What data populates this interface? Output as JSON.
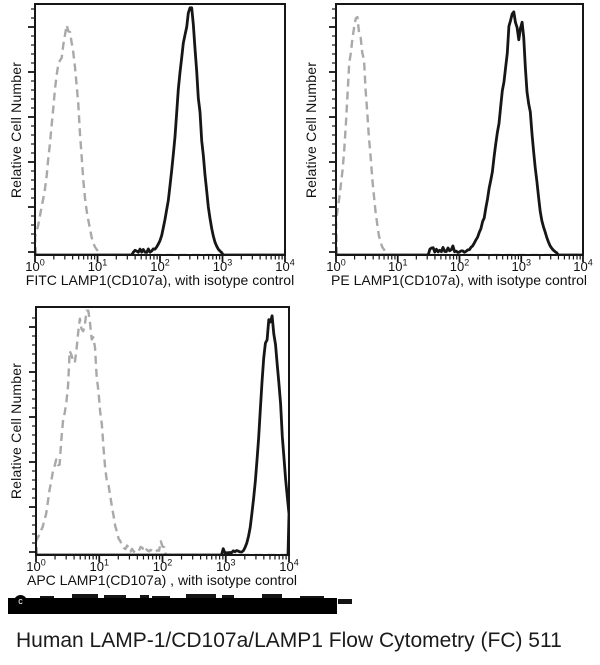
{
  "page": {
    "caption": "Human LAMP-1/CD107a/LAMP1 Flow Cytometry (FC) 511",
    "copyright_symbol": "c",
    "redaction_note": "black bar covering copyright line"
  },
  "chart_data": [
    {
      "type": "histogram",
      "x_scale": "log",
      "x_range": [
        1,
        10000
      ],
      "ylabel": "Relative Cell Number",
      "xlabel": "FITC LAMP1(CD107a), with isotype control",
      "x_tick_exponents": [
        0,
        1,
        2,
        3,
        4
      ],
      "x_tick_values": [
        1,
        10,
        100,
        1000,
        10000
      ],
      "grid": false,
      "legend": "none",
      "series": [
        {
          "name": "isotype control",
          "style": "dashed",
          "color": "#a9a9a9",
          "width": 2.4,
          "peak_x": 3.3,
          "mu": 0.52,
          "sigma_left": 0.23,
          "sigma_right": 0.17,
          "peak_h": 0.93,
          "jag": 0.07,
          "seed": 11
        },
        {
          "name": "FITC LAMP1(CD107a)",
          "style": "solid",
          "color": "#161616",
          "width": 2.8,
          "peak_x": 295,
          "mu": 2.47,
          "sigma_left": 0.2,
          "sigma_right": 0.17,
          "peak_h": 0.95,
          "jag": 0.06,
          "seed": 21,
          "floor": {
            "from": 1.55,
            "to": 2.05,
            "amp": 0.022
          }
        }
      ]
    },
    {
      "type": "histogram",
      "x_scale": "log",
      "x_range": [
        1,
        10000
      ],
      "ylabel": "Relative Cell Number",
      "xlabel": "PE LAMP1(CD107a), with isotype control",
      "x_tick_exponents": [
        0,
        1,
        2,
        3,
        4
      ],
      "x_tick_values": [
        1,
        10,
        100,
        1000,
        10000
      ],
      "grid": false,
      "legend": "none",
      "series": [
        {
          "name": "isotype control",
          "style": "dashed",
          "color": "#a9a9a9",
          "width": 2.4,
          "peak_x": 2.2,
          "mu": 0.34,
          "sigma_left": 0.17,
          "sigma_right": 0.16,
          "peak_h": 0.93,
          "jag": 0.07,
          "seed": 31
        },
        {
          "name": "PE LAMP1(CD107a)",
          "style": "solid",
          "color": "#161616",
          "width": 2.8,
          "peak_x": 850,
          "mu": 2.93,
          "sigma_left": 0.28,
          "sigma_right": 0.21,
          "peak_h": 0.94,
          "jag": 0.07,
          "seed": 41,
          "floor": {
            "from": 1.5,
            "to": 2.35,
            "amp": 0.03
          }
        }
      ]
    },
    {
      "type": "histogram",
      "x_scale": "log",
      "x_range": [
        1,
        10000
      ],
      "ylabel": "Relative Cell Number",
      "xlabel": "APC LAMP1(CD107a) , with isotype control",
      "x_tick_exponents": [
        0,
        1,
        2,
        3,
        4
      ],
      "x_tick_values": [
        1,
        10,
        100,
        1000,
        10000
      ],
      "grid": false,
      "legend": "none",
      "series": [
        {
          "name": "isotype control",
          "style": "dashed",
          "color": "#a9a9a9",
          "width": 2.4,
          "peak_x": 6.3,
          "mu": 0.8,
          "sigma_left": 0.35,
          "sigma_right": 0.22,
          "peak_h": 0.95,
          "jag": 0.13,
          "seed": 51,
          "floor": {
            "from": 1.15,
            "to": 2.05,
            "amp": 0.035
          }
        },
        {
          "name": "APC LAMP1(CD107a)",
          "style": "solid",
          "color": "#161616",
          "width": 2.8,
          "peak_x": 5000,
          "mu": 3.7,
          "sigma_left": 0.15,
          "sigma_right": 0.16,
          "peak_h": 0.97,
          "jag": 0.06,
          "seed": 61,
          "floor": {
            "from": 2.95,
            "to": 3.4,
            "amp": 0.022
          }
        }
      ]
    }
  ]
}
